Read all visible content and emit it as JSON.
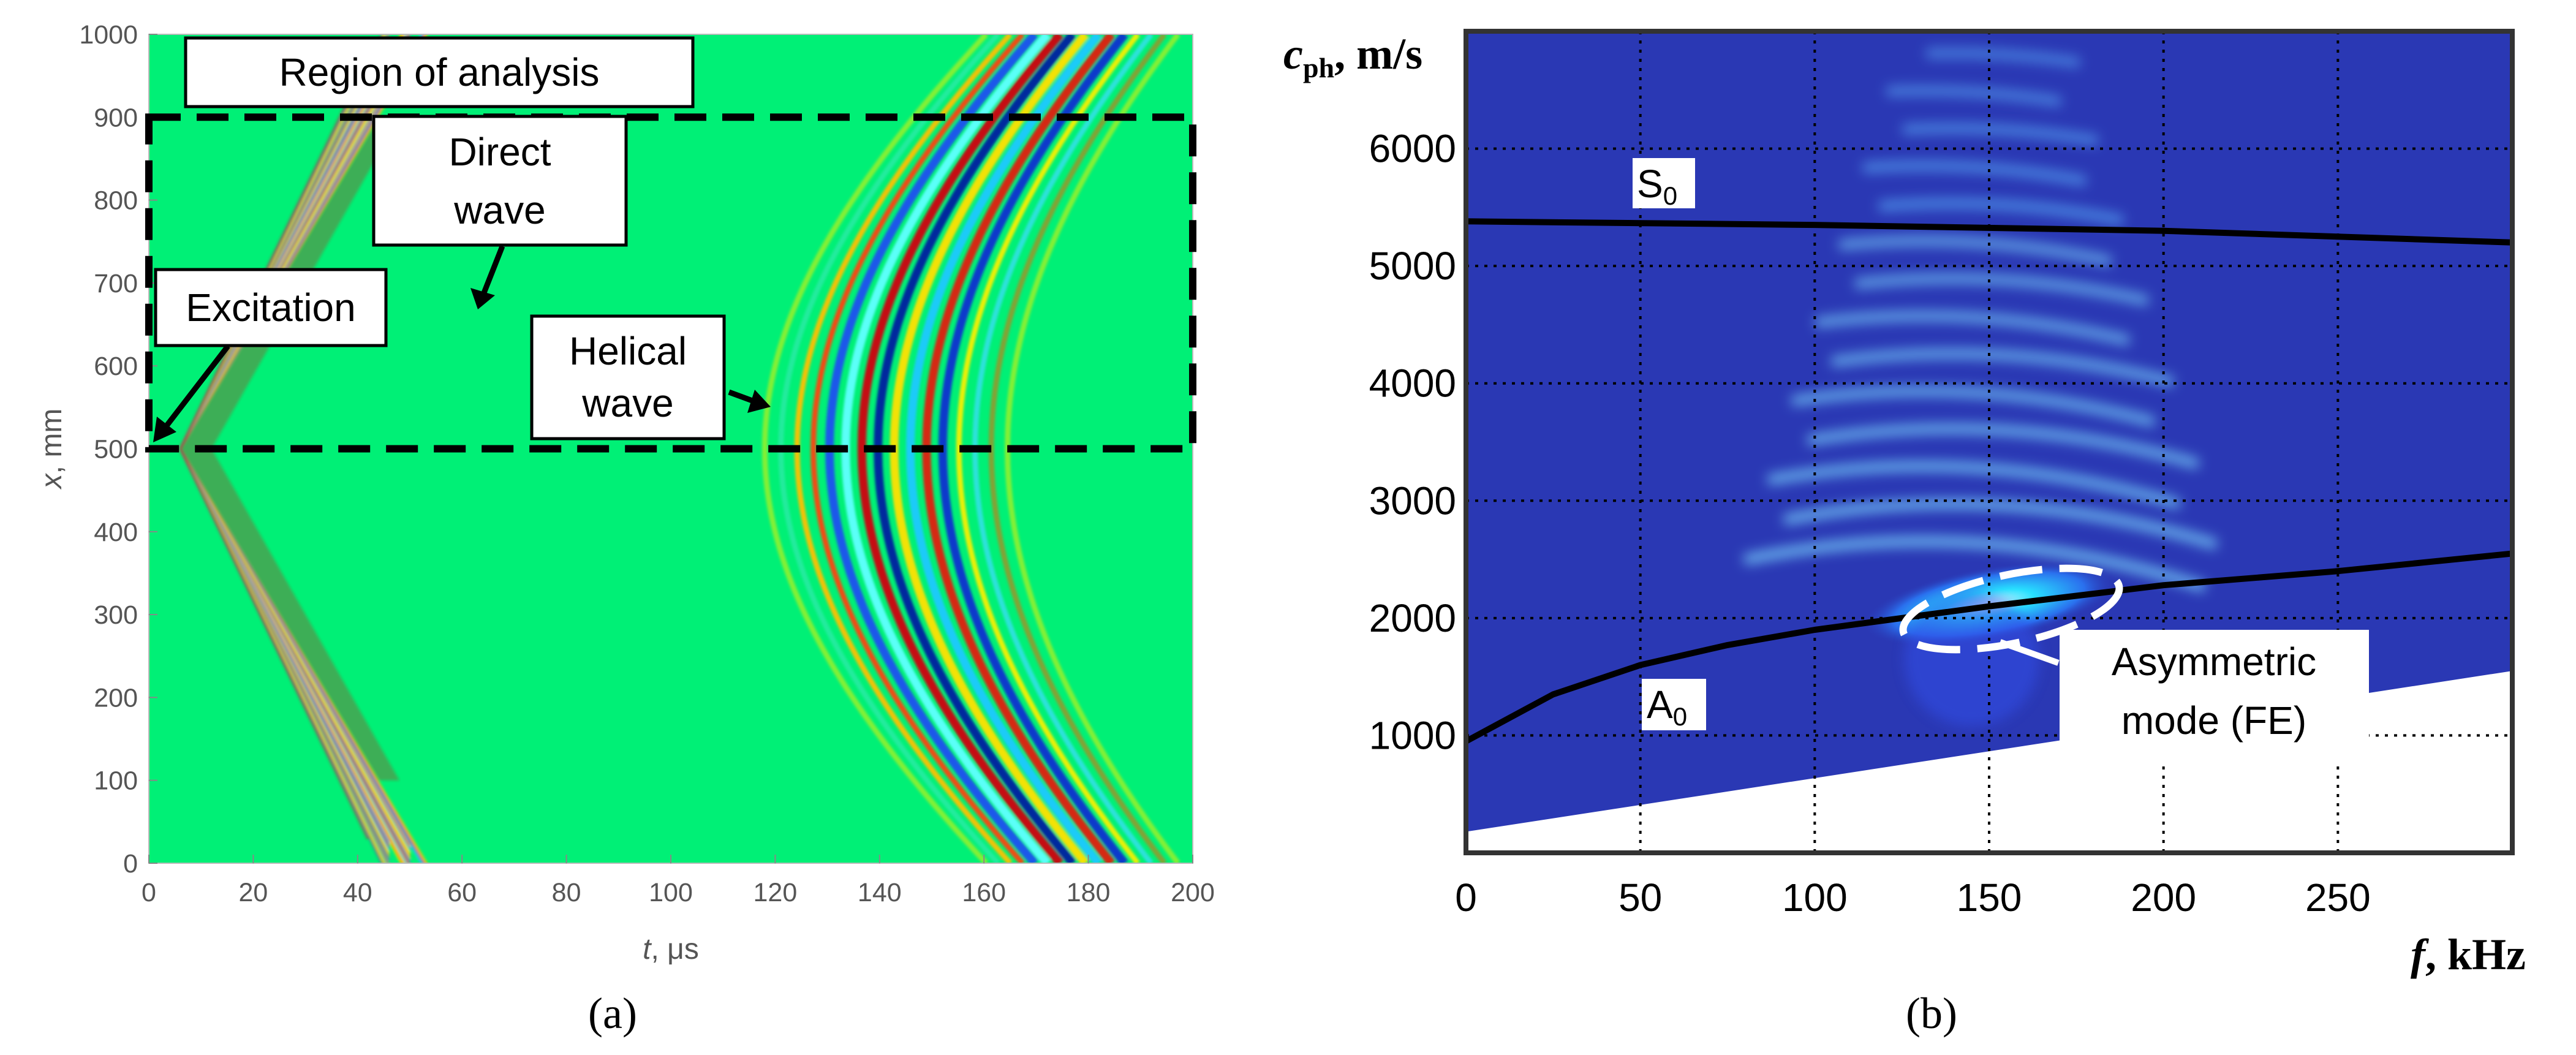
{
  "chart_data": [
    {
      "type": "heatmap",
      "panel_label": "(a)",
      "xlabel_var": "t",
      "xlabel_unit": ", μs",
      "ylabel_var": "x",
      "ylabel_unit": ", mm",
      "xlim": [
        0,
        200
      ],
      "ylim": [
        0,
        1000
      ],
      "x_ticks": [
        0,
        20,
        40,
        60,
        80,
        100,
        120,
        140,
        160,
        180,
        200
      ],
      "y_ticks": [
        0,
        100,
        200,
        300,
        400,
        500,
        600,
        700,
        800,
        900,
        1000
      ],
      "background_color": "#00f076",
      "region_of_analysis": {
        "t": [
          0,
          200
        ],
        "x": [
          500,
          900
        ]
      },
      "excitation_point": {
        "t": 0,
        "x": 500
      },
      "annotations": {
        "region": "Region of analysis",
        "direct": [
          "Direct",
          "wave"
        ],
        "excitation": "Excitation",
        "helical": [
          "Helical",
          "wave"
        ]
      }
    },
    {
      "type": "heatmap",
      "panel_label": "(b)",
      "xlabel_var": "f",
      "xlabel_unit": ", kHz",
      "ylabel_var": "c",
      "ylabel_sub": "ph",
      "ylabel_unit": ", m/s",
      "xlim": [
        0,
        300
      ],
      "ylim": [
        0,
        7000
      ],
      "x_ticks": [
        0,
        50,
        100,
        150,
        200,
        250
      ],
      "y_ticks": [
        1000,
        2000,
        3000,
        4000,
        5000,
        6000
      ],
      "grid": true,
      "background_color": "#2a38b4",
      "series": [
        {
          "name": "S0",
          "label_main": "S",
          "label_sub": "0",
          "f": [
            0,
            100,
            200,
            300
          ],
          "c": [
            5380,
            5350,
            5300,
            5200
          ]
        },
        {
          "name": "A0",
          "label_main": "A",
          "label_sub": "0",
          "f": [
            0,
            25,
            50,
            75,
            100,
            150,
            200,
            250,
            300
          ],
          "c": [
            950,
            1350,
            1600,
            1770,
            1900,
            2100,
            2280,
            2400,
            2550
          ]
        }
      ],
      "annotations": {
        "asymmetric": [
          "Asymmetric",
          "mode (FE)"
        ]
      }
    }
  ]
}
